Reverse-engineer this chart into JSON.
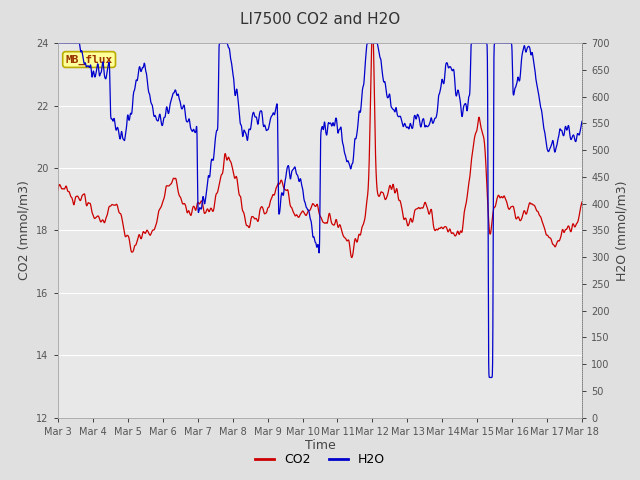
{
  "title": "LI7500 CO2 and H2O",
  "xlabel": "Time",
  "ylabel_left": "CO2 (mmol/m3)",
  "ylabel_right": "H2O (mmol/m3)",
  "co2_ylim": [
    12,
    24
  ],
  "h2o_ylim": [
    0,
    700
  ],
  "co2_yticks": [
    12,
    14,
    16,
    18,
    20,
    22,
    24
  ],
  "h2o_yticks": [
    0,
    50,
    100,
    150,
    200,
    250,
    300,
    350,
    400,
    450,
    500,
    550,
    600,
    650,
    700
  ],
  "xtick_labels": [
    "Mar 3",
    "Mar 4",
    "Mar 5",
    "Mar 6",
    "Mar 7",
    "Mar 8",
    "Mar 9",
    "Mar 10",
    "Mar 11",
    "Mar 12",
    "Mar 13",
    "Mar 14",
    "Mar 15",
    "Mar 16",
    "Mar 17",
    "Mar 18"
  ],
  "co2_color": "#cc0000",
  "h2o_color": "#0000cc",
  "background_color": "#e0e0e0",
  "plot_bg_color": "#e8e8e8",
  "grid_color": "#ffffff",
  "title_fontsize": 11,
  "axis_label_fontsize": 9,
  "tick_fontsize": 7,
  "legend_label_co2": "CO2",
  "legend_label_h2o": "H2O",
  "watermark_text": "MB_flux",
  "watermark_bg": "#ffff99",
  "watermark_border": "#bbaa00"
}
